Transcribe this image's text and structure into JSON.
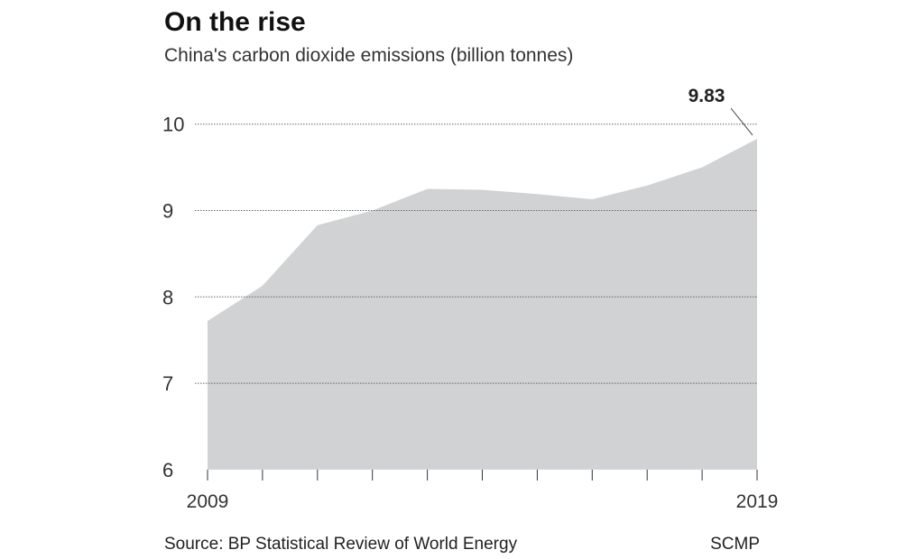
{
  "header": {
    "title": "On the rise",
    "subtitle": "China's carbon dioxide emissions (billion tonnes)"
  },
  "footer": {
    "source": "Source: BP Statistical Review of World Energy",
    "credit": "SCMP"
  },
  "chart_data": {
    "type": "area",
    "title": "On the rise",
    "subtitle": "China's carbon dioxide emissions (billion tonnes)",
    "x": [
      2009,
      2010,
      2011,
      2012,
      2013,
      2014,
      2015,
      2016,
      2017,
      2018,
      2019
    ],
    "values": [
      7.72,
      8.13,
      8.83,
      9.0,
      9.25,
      9.24,
      9.19,
      9.13,
      9.29,
      9.5,
      9.83
    ],
    "ylim": [
      6,
      10
    ],
    "yticks": [
      "6",
      "7",
      "8",
      "9",
      "10"
    ],
    "xtick_labels": [
      "2009",
      "2019"
    ],
    "grid": "horizontal dotted",
    "annotation": "9.83",
    "fill_color": "#d1d2d4"
  }
}
